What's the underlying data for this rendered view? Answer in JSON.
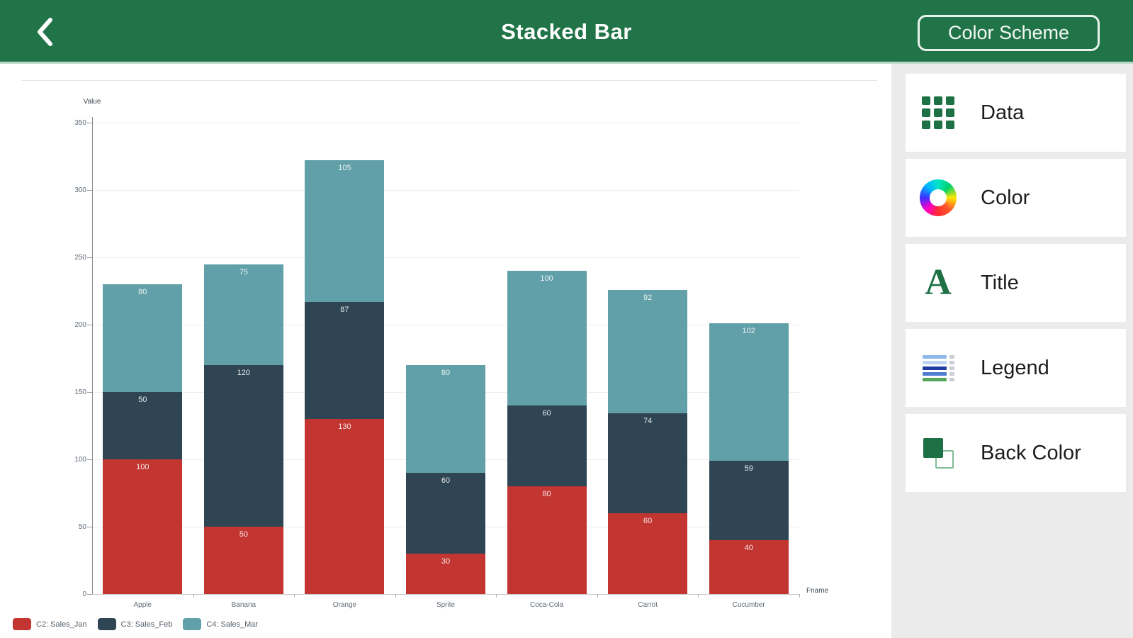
{
  "header": {
    "title": "Stacked Bar",
    "color_scheme_button": "Color Scheme"
  },
  "sidebar": {
    "items": [
      {
        "label": "Data"
      },
      {
        "label": "Color"
      },
      {
        "label": "Title"
      },
      {
        "label": "Legend"
      },
      {
        "label": "Back Color"
      }
    ]
  },
  "chart_data": {
    "type": "bar",
    "stacked": true,
    "xlabel": "Fname",
    "ylabel": "Value",
    "categories": [
      "Apple",
      "Banana",
      "Orange",
      "Sprite",
      "Coca-Cola",
      "Carrot",
      "Cucumber"
    ],
    "series": [
      {
        "name": "C2: Sales_Jan",
        "color": "#c23531",
        "values": [
          100,
          50,
          130,
          30,
          80,
          60,
          40
        ]
      },
      {
        "name": "C3: Sales_Feb",
        "color": "#2f4554",
        "values": [
          50,
          120,
          87,
          60,
          60,
          74,
          59
        ]
      },
      {
        "name": "C4: Sales_Mar",
        "color": "#61a0a8",
        "values": [
          80,
          75,
          105,
          80,
          100,
          92,
          102
        ]
      }
    ],
    "totals": [
      230,
      245,
      322,
      170,
      240,
      226,
      201
    ],
    "yticks": [
      0,
      50,
      100,
      150,
      200,
      250,
      300,
      350
    ],
    "ylim": [
      0,
      360
    ],
    "grid": true,
    "value_labels": true,
    "legend_position": "bottom-left"
  },
  "colors": {
    "header_green": "#217447",
    "icon_green": "#1e7145",
    "sidebar_bg": "#ebebeb"
  }
}
